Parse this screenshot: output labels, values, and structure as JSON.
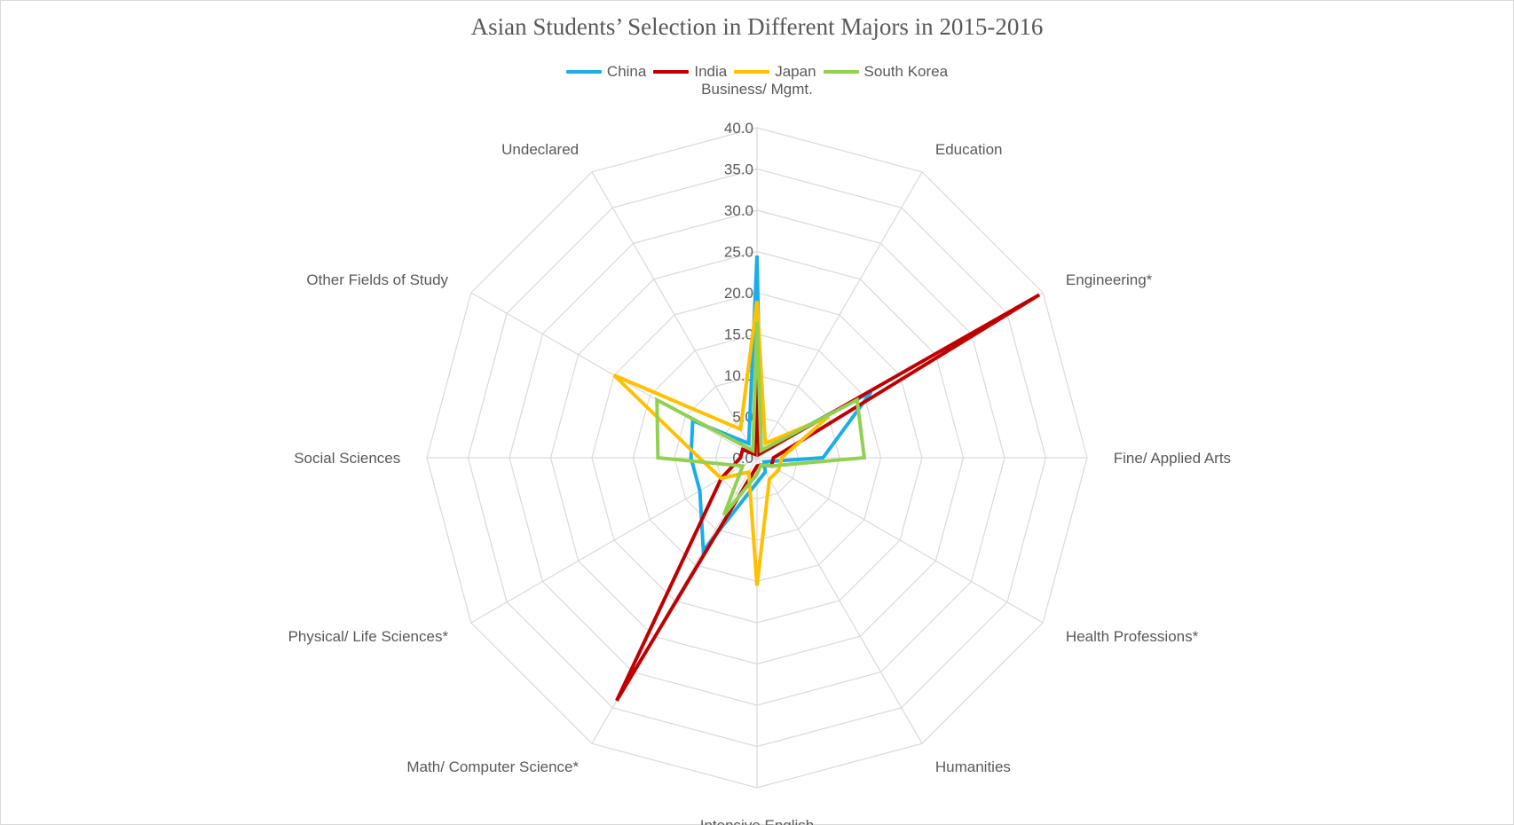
{
  "chart_data": {
    "type": "radar",
    "title": "Asian Students’ Selection in Different Majors in 2015-2016",
    "legend_position": "top",
    "categories": [
      "Business/ Mgmt.",
      "Education",
      "Engineering*",
      "Fine/ Applied Arts",
      "Health Professions*",
      "Humanities",
      "Intensive English",
      "Math/ Computer Science*",
      "Physical/ Life Sciences*",
      "Social Sciences",
      "Other Fields of Study",
      "Undeclared"
    ],
    "ticks": [
      "0.0",
      "5.0",
      "10.0",
      "15.0",
      "20.0",
      "25.0",
      "30.0",
      "35.0",
      "40.0"
    ],
    "r_range": [
      0,
      40
    ],
    "grid": true,
    "series": [
      {
        "name": "China",
        "color": "#1aaee8",
        "values": [
          24.5,
          1.0,
          16.0,
          8.0,
          1.0,
          2.0,
          3.0,
          13.0,
          8.0,
          8.0,
          9.0,
          2.0
        ]
      },
      {
        "name": "India",
        "color": "#c00000",
        "values": [
          10.5,
          0.5,
          39.5,
          2.0,
          2.0,
          1.0,
          1.0,
          34.0,
          5.0,
          2.0,
          2.0,
          0.5
        ]
      },
      {
        "name": "Japan",
        "color": "#ffc000",
        "values": [
          19.0,
          2.0,
          10.0,
          3.0,
          3.0,
          3.0,
          15.5,
          2.0,
          5.0,
          7.0,
          20.0,
          4.0
        ]
      },
      {
        "name": "South Korea",
        "color": "#92d050",
        "values": [
          16.5,
          1.0,
          14.0,
          13.0,
          2.0,
          1.0,
          2.0,
          8.0,
          2.0,
          12.0,
          14.0,
          1.0
        ]
      }
    ]
  }
}
